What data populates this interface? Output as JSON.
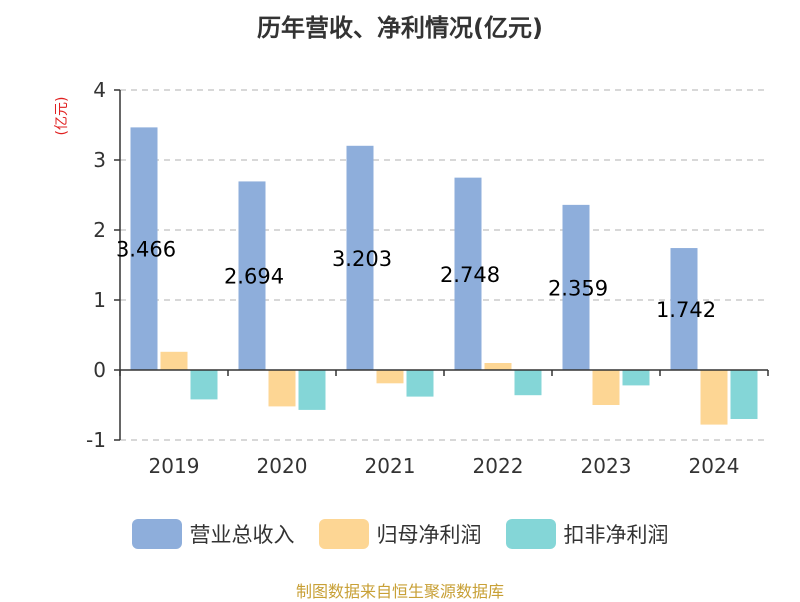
{
  "chart_data": {
    "type": "bar",
    "title": "历年营收、净利情况(亿元)",
    "ylabel": "(亿元)",
    "xlabel": "",
    "ylim": [
      -1,
      4
    ],
    "yticks": [
      "4",
      "3",
      "2",
      "1",
      "0",
      "-1"
    ],
    "categories": [
      "2019",
      "2020",
      "2021",
      "2022",
      "2023",
      "2024"
    ],
    "series": [
      {
        "name": "营业总收入",
        "color": "#8eaedb",
        "values": [
          3.466,
          2.694,
          3.203,
          2.748,
          2.359,
          1.742
        ],
        "labels": [
          "3.466",
          "2.694",
          "3.203",
          "2.748",
          "2.359",
          "1.742"
        ]
      },
      {
        "name": "归母净利润",
        "color": "#fdd694",
        "values": [
          0.26,
          -0.52,
          -0.19,
          0.1,
          -0.5,
          -0.78
        ]
      },
      {
        "name": "扣非净利润",
        "color": "#84d6d7",
        "values": [
          -0.42,
          -0.57,
          -0.38,
          -0.36,
          -0.22,
          -0.7
        ]
      }
    ],
    "grid": true,
    "legend_position": "bottom"
  },
  "source": "制图数据来自恒生聚源数据库"
}
